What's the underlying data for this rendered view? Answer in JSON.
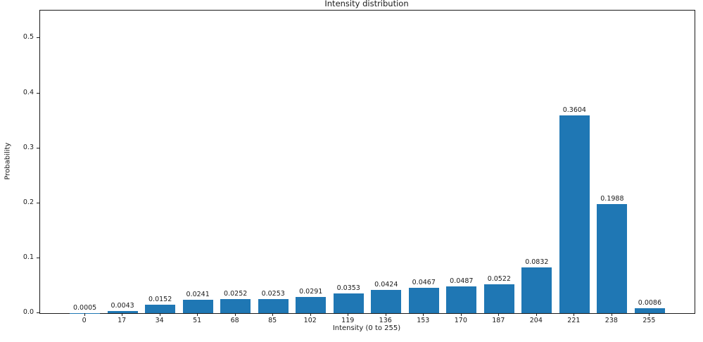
{
  "chart_data": {
    "type": "bar",
    "title": "Intensity distribution",
    "xlabel": "Intensity (0 to 255)",
    "ylabel": "Probability",
    "categories": [
      0,
      17,
      34,
      51,
      68,
      85,
      102,
      119,
      136,
      153,
      170,
      187,
      204,
      221,
      238,
      255
    ],
    "values": [
      0.0005,
      0.0043,
      0.0152,
      0.0241,
      0.0252,
      0.0253,
      0.0291,
      0.0353,
      0.0424,
      0.0467,
      0.0487,
      0.0522,
      0.0832,
      0.3604,
      0.1988,
      0.0086
    ],
    "bar_labels": [
      "0.0005",
      "0.0043",
      "0.0152",
      "0.0241",
      "0.0252",
      "0.0253",
      "0.0291",
      "0.0353",
      "0.0424",
      "0.0467",
      "0.0487",
      "0.0522",
      "0.0832",
      "0.3604",
      "0.1988",
      "0.0086"
    ],
    "xtick_labels": [
      "0",
      "17",
      "34",
      "51",
      "68",
      "85",
      "102",
      "119",
      "136",
      "153",
      "170",
      "187",
      "204",
      "221",
      "238",
      "255"
    ],
    "yticks": [
      0.0,
      0.1,
      0.2,
      0.3,
      0.4,
      0.5
    ],
    "ytick_labels": [
      "0.0",
      "0.1",
      "0.2",
      "0.3",
      "0.4",
      "0.5"
    ],
    "bar_color": "#1f77b4",
    "bar_width_units": 13.6,
    "xlim": [
      -20.2,
      275.2
    ],
    "ylim": [
      0,
      0.5505
    ],
    "grid": false,
    "legend": null
  }
}
